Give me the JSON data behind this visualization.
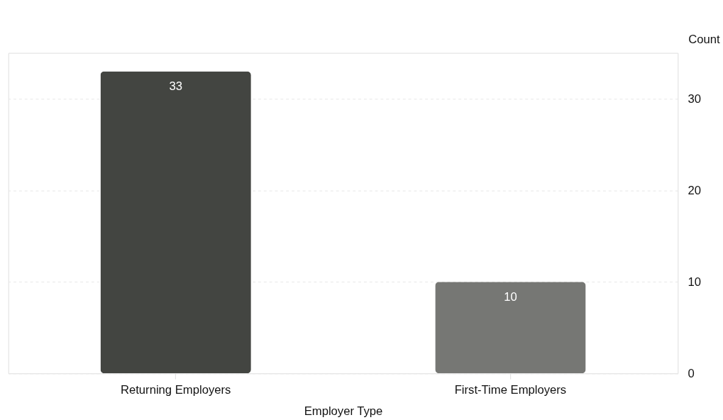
{
  "chart_data": {
    "type": "bar",
    "xlabel": "Employer Type",
    "ylabel": "Count",
    "categories": [
      "Returning Employers",
      "First-Time Employers"
    ],
    "values": [
      33,
      10
    ],
    "colors": [
      "#434541",
      "#767774"
    ],
    "ylim": [
      0,
      35
    ],
    "yticks": [
      0,
      10,
      20,
      30
    ],
    "grid": "y",
    "data_labels": true
  }
}
